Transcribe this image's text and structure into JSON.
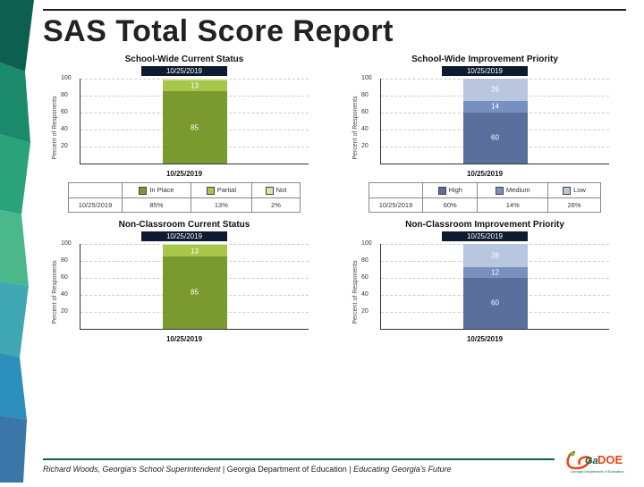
{
  "title": "SAS Total Score Report",
  "date_label": "10/25/2019",
  "row_label": "10/25/201\n9",
  "colors": {
    "green_dark": "#7a9a2f",
    "green_light": "#a8c64a",
    "green_pale": "#d8e6a8",
    "blue_dark": "#5a6f9c",
    "blue_mid": "#7890c0",
    "blue_light": "#b8c6e0",
    "title_bar": "#0d1a30",
    "footer_rule": "#0d6050"
  },
  "charts": [
    {
      "title": "School-Wide Current Status",
      "ylabel": "Percent of Responents",
      "xaxis": "10/25/2019",
      "ymax": 100,
      "ytick_step": 20,
      "segments": [
        {
          "value": 85,
          "color": "#7a9a2f",
          "label": "85"
        },
        {
          "value": 13,
          "color": "#a8c64a",
          "label": "13"
        },
        {
          "value": 2,
          "color": "#d8e6a8",
          "label": ""
        }
      ],
      "legend": [
        "In Place",
        "Partial",
        "Not"
      ],
      "legend_colors": [
        "#7a9a2f",
        "#a8c64a",
        "#d8e6a8"
      ],
      "table_row": [
        "85%",
        "13%",
        "2%"
      ],
      "show_table": true
    },
    {
      "title": "School-Wide Improvement Priority",
      "ylabel": "Percent of Responents",
      "xaxis": "10/25/2019",
      "ymax": 100,
      "ytick_step": 20,
      "segments": [
        {
          "value": 60,
          "color": "#5a6f9c",
          "label": "60"
        },
        {
          "value": 14,
          "color": "#7890c0",
          "label": "14"
        },
        {
          "value": 26,
          "color": "#b8c6e0",
          "label": "26"
        }
      ],
      "legend": [
        "High",
        "Medium",
        "Low"
      ],
      "legend_colors": [
        "#5a6f9c",
        "#7890c0",
        "#b8c6e0"
      ],
      "table_row": [
        "60%",
        "14%",
        "26%"
      ],
      "show_table": true
    },
    {
      "title": "Non-Classroom Current Status",
      "ylabel": "Percent of Responents",
      "xaxis": "10/25/2019",
      "ymax": 100,
      "ytick_step": 20,
      "segments": [
        {
          "value": 85,
          "color": "#7a9a2f",
          "label": "85"
        },
        {
          "value": 13,
          "color": "#a8c64a",
          "label": "13"
        },
        {
          "value": 2,
          "color": "#d8e6a8",
          "label": ""
        }
      ],
      "show_table": false
    },
    {
      "title": "Non-Classroom Improvement Priority",
      "ylabel": "Percent of Responents",
      "xaxis": "10/25/2019",
      "ymax": 100,
      "ytick_step": 20,
      "segments": [
        {
          "value": 60,
          "color": "#5a6f9c",
          "label": "60"
        },
        {
          "value": 12,
          "color": "#7890c0",
          "label": "12"
        },
        {
          "value": 28,
          "color": "#b8c6e0",
          "label": "28"
        }
      ],
      "show_table": false
    }
  ],
  "footer": {
    "name": "Richard Woods, Georgia's School Superintendent",
    "dept": "Georgia Department of Education",
    "motto": "Educating Georgia's Future"
  },
  "logo": {
    "text_ga": "Ga",
    "text_doe": "DOE",
    "subtitle": "Georgia Department of Education"
  }
}
